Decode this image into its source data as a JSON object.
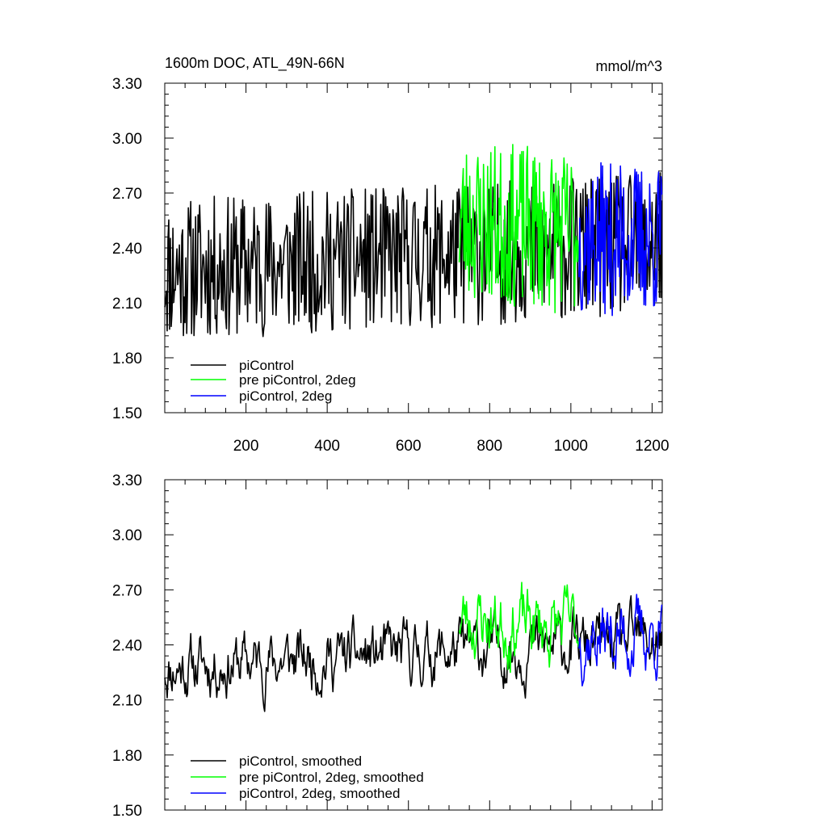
{
  "chart_data": [
    {
      "type": "line",
      "title_left": "1600m DOC, ATL_49N-66N",
      "title_right": "mmol/m^3",
      "xlim": [
        0,
        1225
      ],
      "ylim": [
        1.5,
        3.3
      ],
      "yticks": [
        "1.50",
        "1.80",
        "2.10",
        "2.40",
        "2.70",
        "3.00",
        "3.30"
      ],
      "xticks": [
        "200",
        "400",
        "600",
        "800",
        "1000",
        "1200"
      ],
      "legend": [
        "piControl",
        "pre piControl, 2deg",
        "piControl, 2deg"
      ],
      "series": [
        {
          "name": "piControl",
          "color": "#000000",
          "x_start": 0,
          "x_end": 1225,
          "mean_start": 2.28,
          "mean_end": 2.42,
          "amplitude": 0.28,
          "seed": 11
        },
        {
          "name": "pre piControl, 2deg",
          "color": "#00ff00",
          "x_start": 725,
          "x_end": 1020,
          "mean_start": 2.55,
          "mean_end": 2.48,
          "amplitude": 0.32,
          "seed": 23
        },
        {
          "name": "piControl, 2deg",
          "color": "#0000ff",
          "x_start": 1020,
          "x_end": 1225,
          "mean_start": 2.45,
          "mean_end": 2.45,
          "amplitude": 0.3,
          "seed": 37
        }
      ]
    },
    {
      "type": "line",
      "ylim": [
        1.5,
        3.3
      ],
      "xlim": [
        0,
        1225
      ],
      "yticks": [
        "1.50",
        "1.80",
        "2.10",
        "2.40",
        "2.70",
        "3.00",
        "3.30"
      ],
      "legend": [
        "piControl, smoothed",
        "pre piControl, 2deg, smoothed",
        "piControl, 2deg, smoothed"
      ],
      "series": [
        {
          "name": "piControl, smoothed",
          "color": "#000000",
          "x_start": 0,
          "x_end": 1225,
          "mean_start": 2.28,
          "mean_end": 2.42,
          "amplitude": 0.18,
          "seed": 11
        },
        {
          "name": "pre piControl, 2deg, smoothed",
          "color": "#00ff00",
          "x_start": 725,
          "x_end": 1020,
          "mean_start": 2.55,
          "mean_end": 2.48,
          "amplitude": 0.22,
          "seed": 23
        },
        {
          "name": "piControl, 2deg, smoothed",
          "color": "#0000ff",
          "x_start": 1020,
          "x_end": 1225,
          "mean_start": 2.45,
          "mean_end": 2.45,
          "amplitude": 0.22,
          "seed": 37
        }
      ]
    }
  ]
}
